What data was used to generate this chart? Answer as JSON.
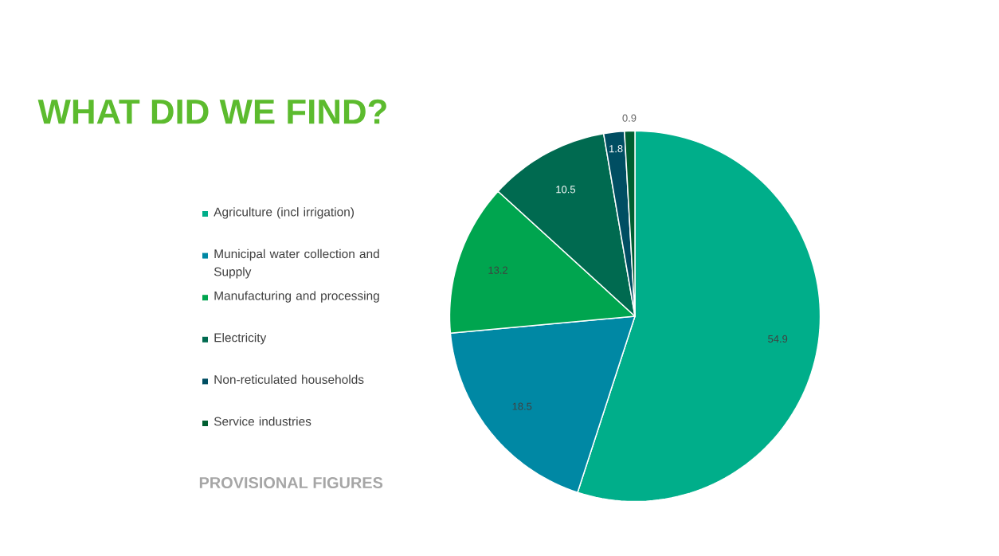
{
  "chart_data": {
    "type": "pie",
    "title": "WHAT DID WE FIND?",
    "categories": [
      "Agriculture (incl irrigation)",
      "Municipal water collection and Supply",
      "Manufacturing and processing",
      "Electricity",
      "Non-reticulated households",
      "Service industries"
    ],
    "values": [
      54.9,
      18.5,
      13.2,
      10.5,
      1.8,
      0.9
    ],
    "colors": [
      "#00ae8a",
      "#0088a4",
      "#00a54f",
      "#006a50",
      "#004e62",
      "#005e31"
    ],
    "data_labels": true,
    "legend": "left",
    "annotations": [
      "PROVISIONAL FIGURES"
    ]
  }
}
